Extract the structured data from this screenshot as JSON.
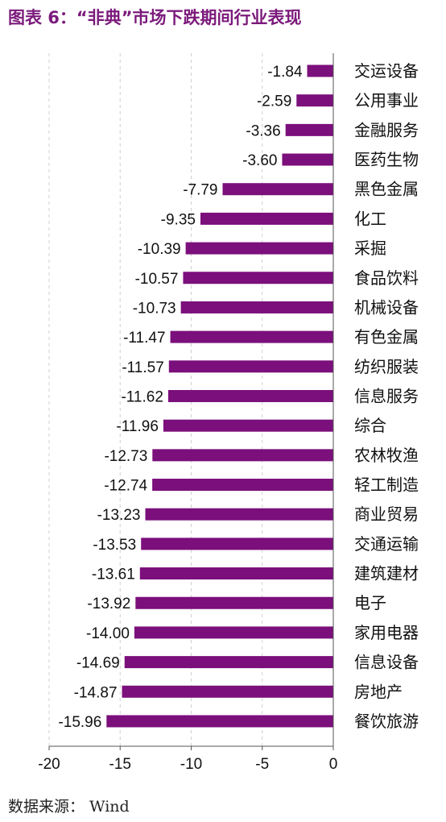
{
  "title": "图表 6：“非典”市场下跌期间行业表现",
  "source": "数据来源： Wind",
  "chart_data": {
    "type": "bar",
    "orientation": "horizontal",
    "categories": [
      "交运设备",
      "公用事业",
      "金融服务",
      "医药生物",
      "黑色金属",
      "化工",
      "采掘",
      "食品饮料",
      "机械设备",
      "有色金属",
      "纺织服装",
      "信息服务",
      "综合",
      "农林牧渔",
      "轻工制造",
      "商业贸易",
      "交通运输",
      "建筑建材",
      "电子",
      "家用电器",
      "信息设备",
      "房地产",
      "餐饮旅游"
    ],
    "values": [
      -1.84,
      -2.59,
      -3.36,
      -3.6,
      -7.79,
      -9.35,
      -10.39,
      -10.57,
      -10.73,
      -11.47,
      -11.57,
      -11.62,
      -11.96,
      -12.73,
      -12.74,
      -13.23,
      -13.53,
      -13.61,
      -13.92,
      -14.0,
      -14.69,
      -14.87,
      -15.96
    ],
    "value_labels": [
      "-1.84",
      "-2.59",
      "-3.36",
      "-3.60",
      "-7.79",
      "-9.35",
      "-10.39",
      "-10.57",
      "-10.73",
      "-11.47",
      "-11.57",
      "-11.62",
      "-11.96",
      "-12.73",
      "-12.74",
      "-13.23",
      "-13.53",
      "-13.61",
      "-13.92",
      "-14.00",
      "-14.69",
      "-14.87",
      "-15.96"
    ],
    "xticks": [
      -20,
      -15,
      -10,
      -5,
      0
    ],
    "xlim": [
      -20,
      0
    ],
    "grid": "vertical dashed",
    "bar_color": "#7b0f7b"
  }
}
